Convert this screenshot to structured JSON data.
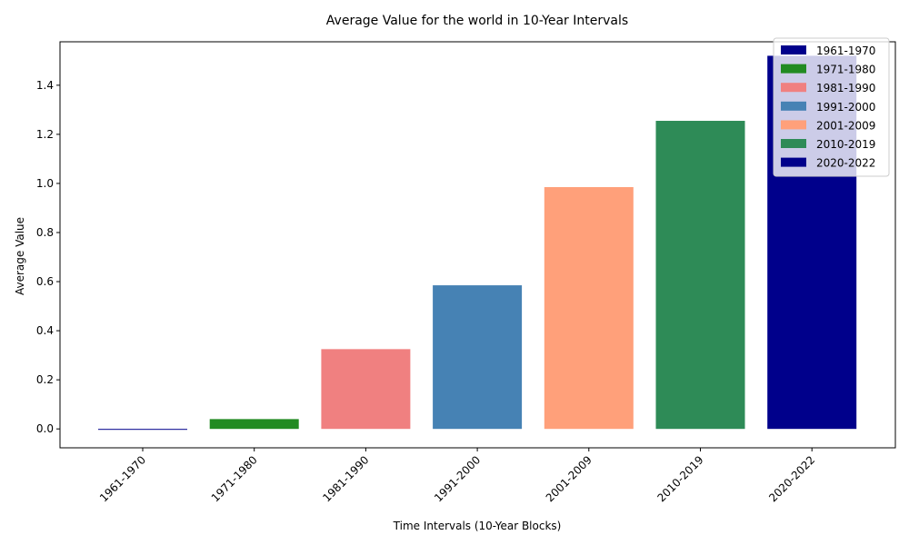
{
  "chart_data": {
    "type": "bar",
    "title": "Average Value for the world in 10-Year Intervals",
    "xlabel": "Time Intervals (10-Year Blocks)",
    "ylabel": "Average Value",
    "categories": [
      "1961-1970",
      "1971-1980",
      "1981-1990",
      "1991-2000",
      "2001-2009",
      "2010-2019",
      "2020-2022"
    ],
    "values": [
      0.0,
      0.04,
      0.325,
      0.585,
      0.985,
      1.255,
      1.52
    ],
    "colors": [
      "#00008b",
      "#228b22",
      "#f08080",
      "#4682b4",
      "#ffa07a",
      "#2e8b57",
      "#00008b"
    ],
    "yticks": [
      "0.0",
      "0.2",
      "0.4",
      "0.6",
      "0.8",
      "1.0",
      "1.2",
      "1.4"
    ],
    "ylim": [
      -0.077,
      1.577
    ],
    "legend_position": "top-right",
    "grid": false
  }
}
